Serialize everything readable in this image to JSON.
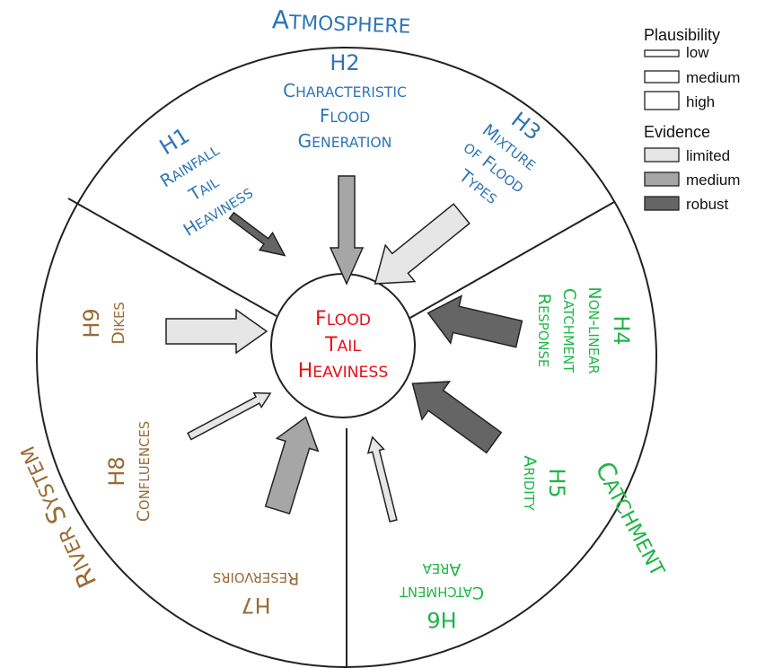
{
  "colors": {
    "atmosphere": "#2e75b6",
    "catchment": "#1fb546",
    "river": "#9a6a35",
    "center": "#e8101a",
    "outline": "#222222",
    "evidence_limited": "#e6e6e6",
    "evidence_medium": "#a6a6a6",
    "evidence_robust": "#656565"
  },
  "center": {
    "lines": [
      "Flood",
      "Tail",
      "Heaviness"
    ]
  },
  "sectors": {
    "atmosphere": {
      "label": "Atmosphere"
    },
    "catchment": {
      "label": "Catchment"
    },
    "river": {
      "label": "River System"
    }
  },
  "hypotheses": {
    "h1": {
      "id": "H1",
      "lines": [
        "Rainfall",
        "Tail",
        "Heaviness"
      ],
      "plausibility": "medium",
      "evidence": "robust"
    },
    "h2": {
      "id": "H2",
      "lines": [
        "Characteristic",
        "Flood",
        "Generation"
      ],
      "plausibility": "medium",
      "evidence": "medium"
    },
    "h3": {
      "id": "H3",
      "lines": [
        "Mixture",
        "of Flood",
        "Types"
      ],
      "plausibility": "high",
      "evidence": "limited"
    },
    "h4": {
      "id": "H4",
      "lines": [
        "Non-linear",
        "Catchment",
        "Response"
      ],
      "plausibility": "high",
      "evidence": "robust"
    },
    "h5": {
      "id": "H5",
      "lines": [
        "Aridity"
      ],
      "plausibility": "high",
      "evidence": "robust"
    },
    "h6": {
      "id": "H6",
      "lines": [
        "Catchment",
        "Area"
      ],
      "plausibility": "low",
      "evidence": "limited"
    },
    "h7": {
      "id": "H7",
      "lines": [
        "Reservoirs"
      ],
      "plausibility": "high",
      "evidence": "medium"
    },
    "h8": {
      "id": "H8",
      "lines": [
        "Confluences"
      ],
      "plausibility": "low",
      "evidence": "limited"
    },
    "h9": {
      "id": "H9",
      "lines": [
        "Dikes"
      ],
      "plausibility": "high",
      "evidence": "limited"
    }
  },
  "legend": {
    "plausibility_title": "Plausibility",
    "plausibility": [
      "low",
      "medium",
      "high"
    ],
    "evidence_title": "Evidence",
    "evidence": [
      "limited",
      "medium",
      "robust"
    ]
  }
}
